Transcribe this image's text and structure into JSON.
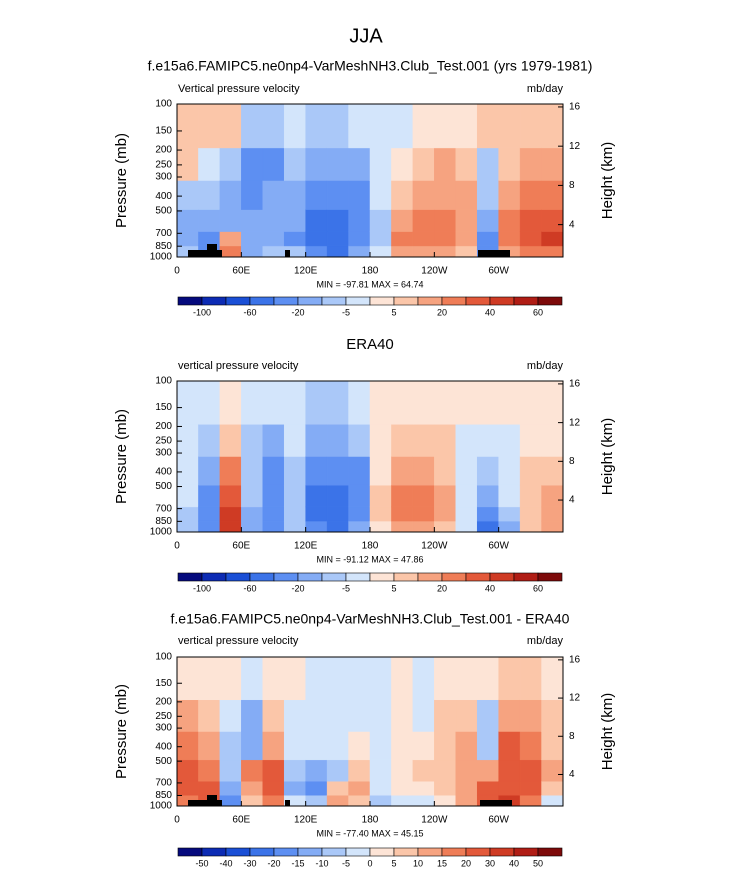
{
  "title": "JJA",
  "chart_data": [
    {
      "type": "contour",
      "title": "f.e15a6.FAMIPC5.ne0np4-VarMeshNH3.Club_Test.001 (yrs 1979-1981)",
      "left_label": "Vertical pressure velocity",
      "right_label": "mb/day",
      "ylabel": "Pressure (mb)",
      "y2label": "Height (km)",
      "stats": "MIN = -97.81  MAX = 64.74",
      "x": [
        10,
        30,
        50,
        70,
        90,
        110,
        130,
        150,
        170,
        190,
        210,
        230,
        250,
        270,
        290,
        310,
        330,
        350
      ],
      "y": [
        925,
        775,
        600,
        400,
        250,
        150
      ],
      "log_scale": true,
      "xlim": [
        0,
        360
      ],
      "ylim": [
        1000,
        100
      ],
      "y2lim": [
        0.7,
        16.3
      ],
      "xticks": [
        0,
        {
          "value": 60,
          "label": "60E"
        },
        {
          "value": 120,
          "label": "120E"
        },
        180,
        {
          "value": 240,
          "label": "120W"
        },
        {
          "value": 300,
          "label": "60W"
        }
      ],
      "yticks": [
        100,
        150,
        200,
        250,
        300,
        400,
        500,
        700,
        850,
        1000
      ],
      "y2ticks": [
        4,
        8,
        12,
        16
      ],
      "values": [
        [
          -10,
          -20,
          -15,
          -10,
          5,
          5
        ],
        [
          -30,
          -40,
          -20,
          -10,
          -5,
          5
        ],
        [
          20,
          10,
          -20,
          -20,
          -10,
          5
        ],
        [
          -20,
          -20,
          -20,
          -40,
          -40,
          -10
        ],
        [
          -10,
          -20,
          -20,
          -20,
          -30,
          -10
        ],
        [
          -10,
          -30,
          -20,
          -15,
          -10,
          -5
        ],
        [
          -40,
          -60,
          -60,
          -40,
          -20,
          -10
        ],
        [
          -60,
          -60,
          -50,
          -40,
          -20,
          -10
        ],
        [
          -20,
          -30,
          -40,
          -30,
          -20,
          -5
        ],
        [
          -5,
          -10,
          -10,
          -5,
          -5,
          -3
        ],
        [
          10,
          20,
          15,
          5,
          3,
          -3
        ],
        [
          10,
          20,
          20,
          10,
          5,
          3
        ],
        [
          10,
          20,
          20,
          15,
          10,
          3
        ],
        [
          5,
          10,
          10,
          10,
          5,
          3
        ],
        [
          -40,
          -30,
          -20,
          -10,
          -10,
          5
        ],
        [
          10,
          20,
          20,
          10,
          5,
          5
        ],
        [
          20,
          30,
          30,
          20,
          10,
          5
        ],
        [
          20,
          40,
          30,
          20,
          10,
          5
        ]
      ],
      "colorbar": {
        "levels": [
          -100,
          -80,
          -60,
          -40,
          -20,
          -10,
          -5,
          0,
          5,
          10,
          20,
          30,
          40,
          50,
          60
        ],
        "ticks": [
          -100,
          -60,
          -20,
          -5,
          5,
          20,
          40,
          60
        ],
        "colors": [
          "#050a7d",
          "#0c2bb4",
          "#1a4fd6",
          "#3b73e8",
          "#5d8ff2",
          "#84acf5",
          "#aac8f8",
          "#d3e5fb",
          "#fde4d6",
          "#fbc6a9",
          "#f6a380",
          "#ef7d57",
          "#e3593a",
          "#cf3b24",
          "#b01d15",
          "#7d0a0a"
        ]
      }
    },
    {
      "type": "contour",
      "title": "ERA40",
      "left_label": "vertical pressure velocity",
      "right_label": "mb/day",
      "ylabel": "Pressure (mb)",
      "y2label": "Height (km)",
      "stats": "MIN = -91.12  MAX = 47.86",
      "x": [
        10,
        30,
        50,
        70,
        90,
        110,
        130,
        150,
        170,
        190,
        210,
        230,
        250,
        270,
        290,
        310,
        330,
        350
      ],
      "y": [
        925,
        775,
        600,
        400,
        250,
        150
      ],
      "log_scale": true,
      "xlim": [
        0,
        360
      ],
      "ylim": [
        1000,
        100
      ],
      "y2lim": [
        0.7,
        16.3
      ],
      "xticks": [
        0,
        {
          "value": 60,
          "label": "60E"
        },
        {
          "value": 120,
          "label": "120E"
        },
        180,
        {
          "value": 240,
          "label": "120W"
        },
        {
          "value": 300,
          "label": "60W"
        }
      ],
      "yticks": [
        100,
        150,
        200,
        250,
        300,
        400,
        500,
        700,
        850,
        1000
      ],
      "y2ticks": [
        4,
        8,
        12,
        16
      ],
      "values": [
        [
          -10,
          -10,
          -5,
          -5,
          -5,
          -3
        ],
        [
          -40,
          -40,
          -30,
          -20,
          -10,
          -5
        ],
        [
          40,
          40,
          30,
          20,
          5,
          3
        ],
        [
          -20,
          -20,
          -10,
          -10,
          -10,
          -5
        ],
        [
          -40,
          -30,
          -30,
          -30,
          -20,
          -5
        ],
        [
          -10,
          -10,
          -10,
          -10,
          -5,
          -3
        ],
        [
          -40,
          -60,
          -60,
          -40,
          -20,
          -10
        ],
        [
          -60,
          -60,
          -60,
          -40,
          -20,
          -10
        ],
        [
          -20,
          -30,
          -30,
          -30,
          -10,
          -5
        ],
        [
          3,
          5,
          5,
          3,
          3,
          3
        ],
        [
          10,
          20,
          20,
          10,
          5,
          3
        ],
        [
          10,
          20,
          20,
          10,
          5,
          3
        ],
        [
          5,
          10,
          10,
          5,
          5,
          3
        ],
        [
          -5,
          -5,
          -5,
          -5,
          -3,
          3
        ],
        [
          -60,
          -40,
          -20,
          -10,
          -5,
          3
        ],
        [
          -20,
          -10,
          -5,
          -3,
          -5,
          3
        ],
        [
          5,
          5,
          5,
          5,
          3,
          3
        ],
        [
          10,
          10,
          10,
          5,
          3,
          3
        ]
      ],
      "colorbar": {
        "levels": [
          -100,
          -80,
          -60,
          -40,
          -20,
          -10,
          -5,
          0,
          5,
          10,
          20,
          30,
          40,
          50,
          60
        ],
        "ticks": [
          -100,
          -60,
          -20,
          -5,
          5,
          20,
          40,
          60
        ],
        "colors": [
          "#050a7d",
          "#0c2bb4",
          "#1a4fd6",
          "#3b73e8",
          "#5d8ff2",
          "#84acf5",
          "#aac8f8",
          "#d3e5fb",
          "#fde4d6",
          "#fbc6a9",
          "#f6a380",
          "#ef7d57",
          "#e3593a",
          "#cf3b24",
          "#b01d15",
          "#7d0a0a"
        ]
      }
    },
    {
      "type": "contour",
      "title": "f.e15a6.FAMIPC5.ne0np4-VarMeshNH3.Club_Test.001 - ERA40",
      "left_label": "vertical pressure velocity",
      "right_label": "mb/day",
      "ylabel": "Pressure (mb)",
      "y2label": "Height (km)",
      "stats": "MIN = -77.40  MAX = 45.15",
      "x": [
        10,
        30,
        50,
        70,
        90,
        110,
        130,
        150,
        170,
        190,
        210,
        230,
        250,
        270,
        290,
        310,
        330,
        350
      ],
      "y": [
        925,
        775,
        600,
        400,
        250,
        150
      ],
      "log_scale": true,
      "xlim": [
        0,
        360
      ],
      "ylim": [
        1000,
        100
      ],
      "y2lim": [
        0.7,
        16.3
      ],
      "xticks": [
        0,
        {
          "value": 60,
          "label": "60E"
        },
        {
          "value": 120,
          "label": "120E"
        },
        180,
        {
          "value": 240,
          "label": "120W"
        },
        {
          "value": 300,
          "label": "60W"
        }
      ],
      "yticks": [
        100,
        150,
        200,
        250,
        300,
        400,
        500,
        700,
        850,
        1000
      ],
      "y2ticks": [
        4,
        8,
        12,
        16
      ],
      "values": [
        [
          15,
          25,
          20,
          15,
          10,
          3
        ],
        [
          20,
          25,
          15,
          10,
          5,
          3
        ],
        [
          -20,
          -15,
          -10,
          -10,
          -5,
          3
        ],
        [
          5,
          10,
          15,
          -15,
          -15,
          -3
        ],
        [
          15,
          20,
          20,
          10,
          5,
          3
        ],
        [
          -5,
          -15,
          -10,
          -5,
          -3,
          3
        ],
        [
          -10,
          -20,
          -15,
          -5,
          -3,
          -3
        ],
        [
          10,
          5,
          -10,
          -5,
          -3,
          -3
        ],
        [
          5,
          10,
          5,
          3,
          -3,
          -3
        ],
        [
          -10,
          -5,
          -5,
          -3,
          -3,
          -3
        ],
        [
          -3,
          3,
          3,
          3,
          3,
          3
        ],
        [
          -3,
          3,
          5,
          3,
          -3,
          -3
        ],
        [
          3,
          5,
          5,
          5,
          5,
          3
        ],
        [
          10,
          10,
          10,
          10,
          5,
          3
        ],
        [
          20,
          20,
          10,
          -10,
          -10,
          3
        ],
        [
          30,
          25,
          25,
          20,
          10,
          5
        ],
        [
          15,
          20,
          25,
          15,
          10,
          5
        ],
        [
          -3,
          5,
          10,
          5,
          5,
          3
        ]
      ],
      "colorbar": {
        "levels": [
          -50,
          -40,
          -30,
          -20,
          -15,
          -10,
          -5,
          0,
          5,
          10,
          15,
          20,
          30,
          40,
          50
        ],
        "ticks": [
          -50,
          -40,
          -30,
          -20,
          -15,
          -10,
          -5,
          0,
          5,
          10,
          15,
          20,
          30,
          40,
          50
        ],
        "colors": [
          "#050a7d",
          "#0c2bb4",
          "#1a4fd6",
          "#3b73e8",
          "#5d8ff2",
          "#84acf5",
          "#aac8f8",
          "#d3e5fb",
          "#fde4d6",
          "#fbc6a9",
          "#f6a380",
          "#ef7d57",
          "#e3593a",
          "#cf3b24",
          "#b01d15",
          "#7d0a0a"
        ]
      }
    }
  ]
}
